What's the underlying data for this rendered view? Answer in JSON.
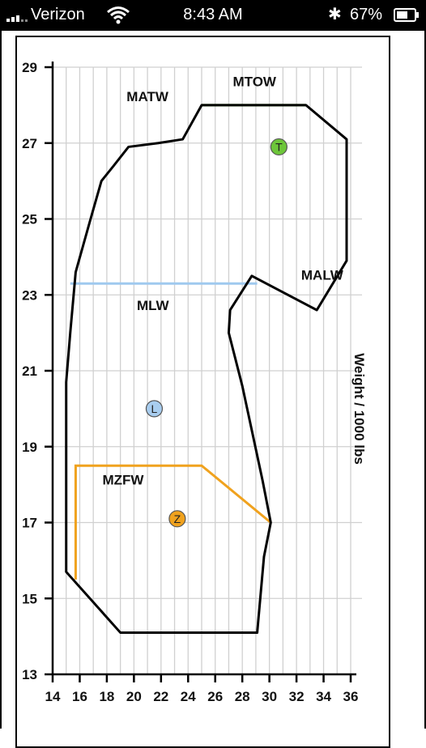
{
  "status_bar": {
    "carrier": "Verizon",
    "time": "8:43 AM",
    "battery": "67%",
    "battery_level": 0.67
  },
  "chart_data": {
    "type": "line",
    "xlabel": "",
    "ylabel": "Weight / 1000 lbs",
    "xlim": [
      14,
      36
    ],
    "ylim": [
      13,
      29
    ],
    "x_ticks": [
      "14",
      "16",
      "18",
      "20",
      "22",
      "24",
      "26",
      "28",
      "30",
      "32",
      "34",
      "36"
    ],
    "y_ticks": [
      "29",
      "27",
      "25",
      "23",
      "21",
      "19",
      "17",
      "15",
      "13"
    ],
    "grid": true,
    "envelope": [
      [
        25.0,
        28.0
      ],
      [
        23.6,
        27.1
      ],
      [
        21.8,
        27.0
      ],
      [
        19.6,
        26.9
      ],
      [
        18.5,
        26.4
      ],
      [
        17.6,
        26.0
      ],
      [
        16.8,
        25.0
      ],
      [
        15.7,
        23.6
      ],
      [
        15.3,
        22.0
      ],
      [
        15.0,
        20.7
      ],
      [
        15.0,
        15.7
      ],
      [
        19.0,
        14.1
      ],
      [
        29.1,
        14.1
      ],
      [
        29.6,
        16.1
      ],
      [
        30.1,
        17.0
      ],
      [
        29.5,
        18.1
      ],
      [
        28.0,
        20.6
      ],
      [
        27.0,
        22.0
      ],
      [
        27.1,
        22.6
      ],
      [
        28.7,
        23.5
      ],
      [
        33.5,
        22.6
      ],
      [
        35.7,
        23.9
      ],
      [
        35.7,
        27.1
      ],
      [
        32.7,
        28.0
      ]
    ],
    "limits": [
      {
        "name": "MTOW",
        "color": "#5ec21e",
        "points": [
          [
            25.0,
            28.0
          ],
          [
            32.7,
            28.0
          ]
        ]
      },
      {
        "name": "MLW",
        "color": "#9fc9ef",
        "points": [
          [
            15.3,
            23.3
          ],
          [
            29.1,
            23.3
          ]
        ]
      },
      {
        "name": "MZFW",
        "color": "#f0a21e",
        "points": [
          [
            15.7,
            15.5
          ],
          [
            15.7,
            18.5
          ],
          [
            25.0,
            18.5
          ],
          [
            30.1,
            17.0
          ]
        ]
      }
    ],
    "region_labels": [
      {
        "text": "MATW",
        "x": 21.0,
        "y": 28.1
      },
      {
        "text": "MTOW",
        "x": 28.9,
        "y": 28.5
      },
      {
        "text": "MALW",
        "x": 33.9,
        "y": 23.4
      },
      {
        "text": "MLW",
        "x": 21.4,
        "y": 22.6
      },
      {
        "text": "MZFW",
        "x": 19.2,
        "y": 18.0
      }
    ],
    "markers": [
      {
        "label": "T",
        "color": "#6dc63a",
        "x": 30.7,
        "y": 26.9
      },
      {
        "label": "L",
        "color": "#a8cdef",
        "x": 21.5,
        "y": 20.0
      },
      {
        "label": "Z",
        "color": "#f0a21e",
        "x": 23.2,
        "y": 17.1
      }
    ]
  }
}
